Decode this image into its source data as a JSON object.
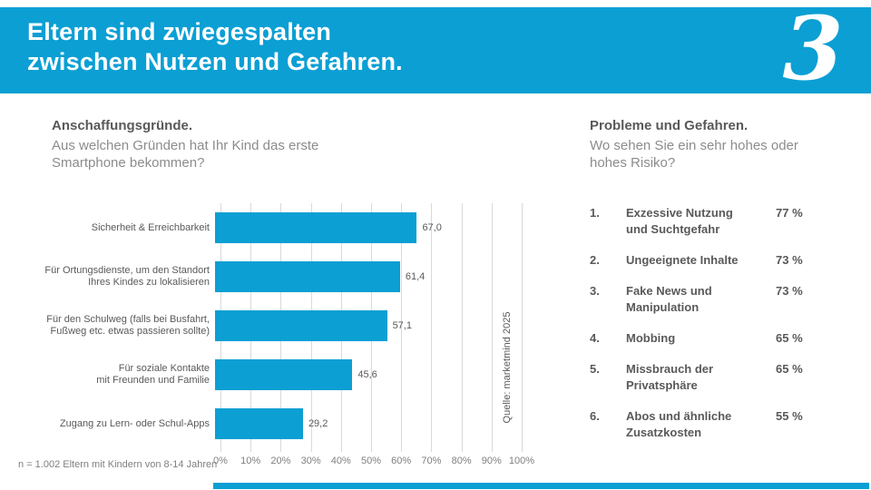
{
  "header": {
    "title": "Eltern sind zwiegespalten\nzwischen Nutzen und Gefahren.",
    "logo_glyph": "3",
    "background_color": "#0b9fd4"
  },
  "left_panel": {
    "heading": "Anschaffungsgründe.",
    "subtitle": "Aus welchen Gründen hat Ihr Kind das erste\nSmartphone bekommen?"
  },
  "right_panel": {
    "heading": "Probleme und Gefahren.",
    "subtitle": "Wo sehen Sie ein sehr hohes oder\nhohes Risiko?"
  },
  "risk_list": {
    "items": [
      {
        "rank": "1.",
        "lines": [
          "Exzessive Nutzung",
          "und Suchtgefahr"
        ],
        "value": "77 %"
      },
      {
        "rank": "2.",
        "lines": [
          "Ungeeignete Inhalte"
        ],
        "value": "73 %"
      },
      {
        "rank": "3.",
        "lines": [
          "Fake News und",
          "Manipulation"
        ],
        "value": "73 %"
      },
      {
        "rank": "4.",
        "lines": [
          "Mobbing"
        ],
        "value": "65 %"
      },
      {
        "rank": "5.",
        "lines": [
          "Missbrauch der",
          "Privatsphäre"
        ],
        "value": "65 %"
      },
      {
        "rank": "6.",
        "lines": [
          "Abos und ähnliche",
          "Zusatzkosten"
        ],
        "value": "55 %"
      }
    ]
  },
  "chart_data": [
    {
      "type": "bar",
      "orientation": "horizontal",
      "title": "Anschaffungsgründe.",
      "subtitle": "Aus welchen Gründen hat Ihr Kind das erste Smartphone bekommen?",
      "categories": [
        "Sicherheit & Erreichbarkeit",
        "Für Ortungsdienste, um den Standort Ihres Kindes zu lokalisieren",
        "Für den Schulweg (falls bei Busfahrt, Fußweg etc. etwas passieren sollte)",
        "Für soziale Kontakte mit Freunden und Familie",
        "Zugang zu Lern- oder Schul-Apps"
      ],
      "category_lines": [
        [
          "Sicherheit & Erreichbarkeit"
        ],
        [
          "Für Ortungsdienste, um den Standort",
          "Ihres Kindes zu lokalisieren"
        ],
        [
          "Für den Schulweg (falls bei Busfahrt,",
          "Fußweg etc. etwas passieren sollte)"
        ],
        [
          "Für soziale Kontakte",
          "mit Freunden und Familie"
        ],
        [
          "Zugang zu Lern- oder Schul-Apps"
        ]
      ],
      "values": [
        67.0,
        61.4,
        57.1,
        45.6,
        29.2
      ],
      "value_labels": [
        "67,0",
        "61,4",
        "57,1",
        "45,6",
        "29,2"
      ],
      "xlabel": "",
      "ylabel": "",
      "xlim": [
        0,
        100
      ],
      "x_ticks": [
        "0%",
        "10%",
        "20%",
        "30%",
        "40%",
        "50%",
        "60%",
        "70%",
        "80%",
        "90%",
        "100%"
      ],
      "grid": true,
      "legend": false,
      "bar_color": "#0b9fd4",
      "source": "Quelle: marketmind 2025"
    },
    {
      "type": "table",
      "title": "Probleme und Gefahren.",
      "subtitle": "Wo sehen Sie ein sehr hohes oder hohes Risiko?",
      "rows": [
        [
          "1.",
          "Exzessive Nutzung und Suchtgefahr",
          "77 %"
        ],
        [
          "2.",
          "Ungeeignete Inhalte",
          "73 %"
        ],
        [
          "3.",
          "Fake News und Manipulation",
          "73 %"
        ],
        [
          "4.",
          "Mobbing",
          "65 %"
        ],
        [
          "5.",
          "Missbrauch der Privatsphäre",
          "65 %"
        ],
        [
          "6.",
          "Abos und ähnliche Zusatzkosten",
          "55 %"
        ]
      ]
    }
  ],
  "footer": {
    "note": "n = 1.002 Eltern mit Kindern von 8-14 Jahren"
  }
}
